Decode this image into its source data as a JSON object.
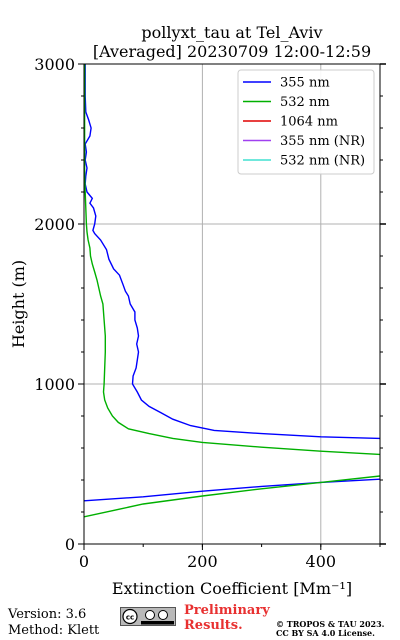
{
  "chart_data": {
    "type": "line",
    "title": "pollyxt_tau at Tel_Aviv",
    "subtitle": "[Averaged] 20230709 12:00-12:59",
    "xlabel": "Extinction Coefficient [Mm⁻¹]",
    "ylabel": "Height (m)",
    "xlim": [
      0,
      500
    ],
    "ylim": [
      0,
      3000
    ],
    "xticks": [
      0,
      200,
      400
    ],
    "yticks": [
      0,
      1000,
      2000,
      3000
    ],
    "grid": true,
    "legend_position": "top-right",
    "series": [
      {
        "name": "355 nm",
        "color": "#0000ff",
        "points": [
          [
            500,
            660
          ],
          [
            400,
            670
          ],
          [
            300,
            690
          ],
          [
            220,
            710
          ],
          [
            180,
            740
          ],
          [
            150,
            780
          ],
          [
            130,
            820
          ],
          [
            110,
            860
          ],
          [
            97,
            900
          ],
          [
            90,
            950
          ],
          [
            82,
            1000
          ],
          [
            83,
            1050
          ],
          [
            88,
            1100
          ],
          [
            90,
            1150
          ],
          [
            92,
            1200
          ],
          [
            89,
            1250
          ],
          [
            92,
            1300
          ],
          [
            90,
            1350
          ],
          [
            86,
            1400
          ],
          [
            86,
            1450
          ],
          [
            78,
            1500
          ],
          [
            75,
            1550
          ],
          [
            70,
            1580
          ],
          [
            66,
            1620
          ],
          [
            60,
            1680
          ],
          [
            50,
            1720
          ],
          [
            42,
            1780
          ],
          [
            38,
            1840
          ],
          [
            28,
            1900
          ],
          [
            18,
            1940
          ],
          [
            15,
            1960
          ],
          [
            18,
            2000
          ],
          [
            20,
            2050
          ],
          [
            16,
            2100
          ],
          [
            10,
            2130
          ],
          [
            14,
            2160
          ],
          [
            5,
            2200
          ],
          [
            2,
            2250
          ],
          [
            3,
            2300
          ],
          [
            5,
            2350
          ],
          [
            2,
            2400
          ],
          [
            4,
            2450
          ],
          [
            2,
            2500
          ],
          [
            10,
            2550
          ],
          [
            12,
            2600
          ],
          [
            8,
            2650
          ],
          [
            3,
            2700
          ],
          [
            2,
            2800
          ],
          [
            2,
            2900
          ],
          [
            2,
            3000
          ]
        ],
        "points_lower": [
          [
            0,
            270
          ],
          [
            100,
            295
          ],
          [
            200,
            330
          ],
          [
            300,
            360
          ],
          [
            400,
            385
          ],
          [
            500,
            405
          ]
        ]
      },
      {
        "name": "532 nm",
        "color": "#00b000",
        "points": [
          [
            500,
            560
          ],
          [
            400,
            580
          ],
          [
            300,
            605
          ],
          [
            200,
            635
          ],
          [
            150,
            660
          ],
          [
            110,
            690
          ],
          [
            75,
            720
          ],
          [
            58,
            760
          ],
          [
            48,
            800
          ],
          [
            40,
            850
          ],
          [
            35,
            900
          ],
          [
            33,
            950
          ],
          [
            34,
            1000
          ],
          [
            35,
            1100
          ],
          [
            36,
            1200
          ],
          [
            36,
            1300
          ],
          [
            34,
            1400
          ],
          [
            32,
            1500
          ],
          [
            28,
            1550
          ],
          [
            25,
            1600
          ],
          [
            22,
            1650
          ],
          [
            18,
            1700
          ],
          [
            14,
            1750
          ],
          [
            11,
            1800
          ],
          [
            10,
            1850
          ],
          [
            7,
            1900
          ],
          [
            5,
            1950
          ],
          [
            4,
            2000
          ],
          [
            3,
            2100
          ],
          [
            2,
            2200
          ],
          [
            1,
            2300
          ],
          [
            1,
            2500
          ],
          [
            1,
            2700
          ],
          [
            1,
            2900
          ],
          [
            1,
            3000
          ]
        ],
        "points_lower": [
          [
            0,
            170
          ],
          [
            50,
            210
          ],
          [
            100,
            250
          ],
          [
            200,
            300
          ],
          [
            300,
            345
          ],
          [
            400,
            385
          ],
          [
            500,
            425
          ]
        ]
      },
      {
        "name": "1064 nm",
        "color": "#e00000",
        "points": []
      },
      {
        "name": "355 nm (NR)",
        "color": "#a040f0",
        "points": []
      },
      {
        "name": "532 nm (NR)",
        "color": "#40e0d0",
        "points": []
      }
    ]
  },
  "footer": {
    "version": "Version: 3.6",
    "method": "Method: Klett",
    "preliminary": "Preliminary",
    "results": "Results.",
    "copyright": "© TROPOS & TAU 2023.",
    "license": "CC BY SA 4.0 License."
  }
}
